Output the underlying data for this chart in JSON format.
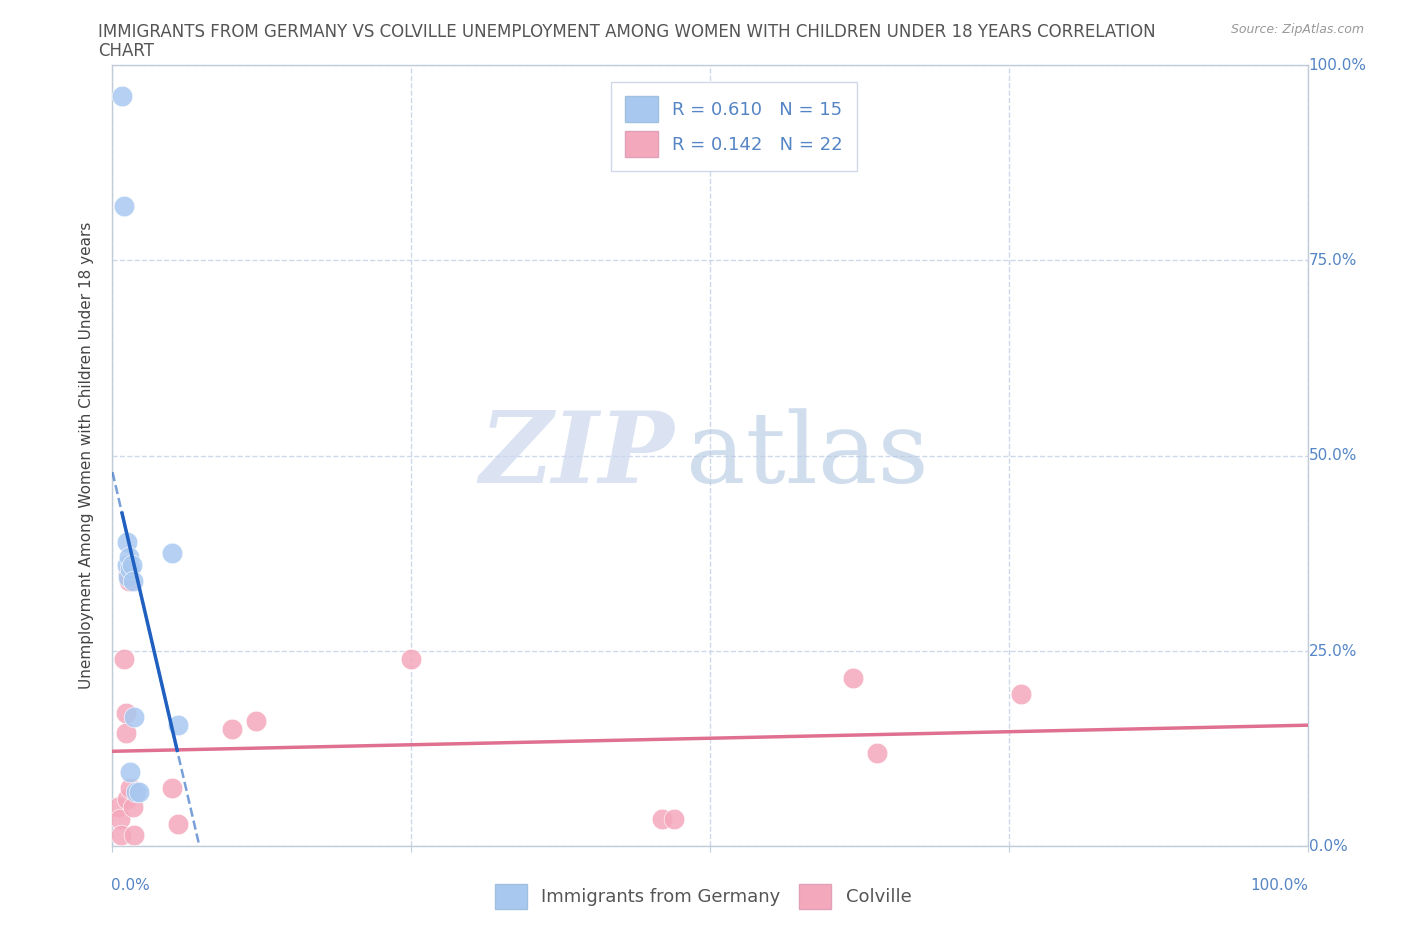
{
  "title_line1": "IMMIGRANTS FROM GERMANY VS COLVILLE UNEMPLOYMENT AMONG WOMEN WITH CHILDREN UNDER 18 YEARS CORRELATION",
  "title_line2": "CHART",
  "source": "Source: ZipAtlas.com",
  "xlabel": "Immigrants from Germany",
  "ylabel": "Unemployment Among Women with Children Under 18 years",
  "watermark_zip": "ZIP",
  "watermark_atlas": "atlas",
  "xlim": [
    0.0,
    1.0
  ],
  "ylim": [
    0.0,
    1.0
  ],
  "xticks": [
    0.0,
    0.25,
    0.5,
    0.75,
    1.0
  ],
  "yticks": [
    0.0,
    0.25,
    0.5,
    0.75,
    1.0
  ],
  "xticklabels_left": [
    "0.0%",
    "",
    "",
    "",
    ""
  ],
  "xticklabels_right": "100.0%",
  "yticklabels_right": [
    "100.0%",
    "75.0%",
    "50.0%",
    "25.0%",
    "0.0%"
  ],
  "blue_R": "0.610",
  "blue_N": 15,
  "pink_R": "0.142",
  "pink_N": 22,
  "blue_color": "#a8c8f0",
  "pink_color": "#f4a8bc",
  "blue_line_color": "#2060c0",
  "pink_line_color": "#e07090",
  "blue_scatter_x": [
    0.008,
    0.01,
    0.012,
    0.012,
    0.013,
    0.014,
    0.015,
    0.015,
    0.016,
    0.017,
    0.018,
    0.02,
    0.022,
    0.05,
    0.055
  ],
  "blue_scatter_y": [
    0.96,
    0.82,
    0.39,
    0.36,
    0.345,
    0.37,
    0.355,
    0.095,
    0.36,
    0.34,
    0.165,
    0.07,
    0.07,
    0.375,
    0.155
  ],
  "pink_scatter_x": [
    0.005,
    0.006,
    0.007,
    0.01,
    0.011,
    0.011,
    0.012,
    0.013,
    0.014,
    0.015,
    0.017,
    0.018,
    0.05,
    0.055,
    0.1,
    0.12,
    0.25,
    0.46,
    0.47,
    0.62,
    0.64,
    0.76
  ],
  "pink_scatter_y": [
    0.05,
    0.035,
    0.015,
    0.24,
    0.17,
    0.145,
    0.06,
    0.35,
    0.34,
    0.075,
    0.05,
    0.015,
    0.075,
    0.028,
    0.15,
    0.16,
    0.24,
    0.035,
    0.035,
    0.215,
    0.12,
    0.195
  ],
  "title_fontsize": 12,
  "axis_label_fontsize": 11,
  "tick_fontsize": 11,
  "legend_fontsize": 13,
  "background_color": "#ffffff",
  "grid_color": "#c8d4e8",
  "title_color": "#555555",
  "source_color": "#999999",
  "ylabel_color": "#444444",
  "tick_color": "#5585c5",
  "bottom_label_color": "#555555"
}
